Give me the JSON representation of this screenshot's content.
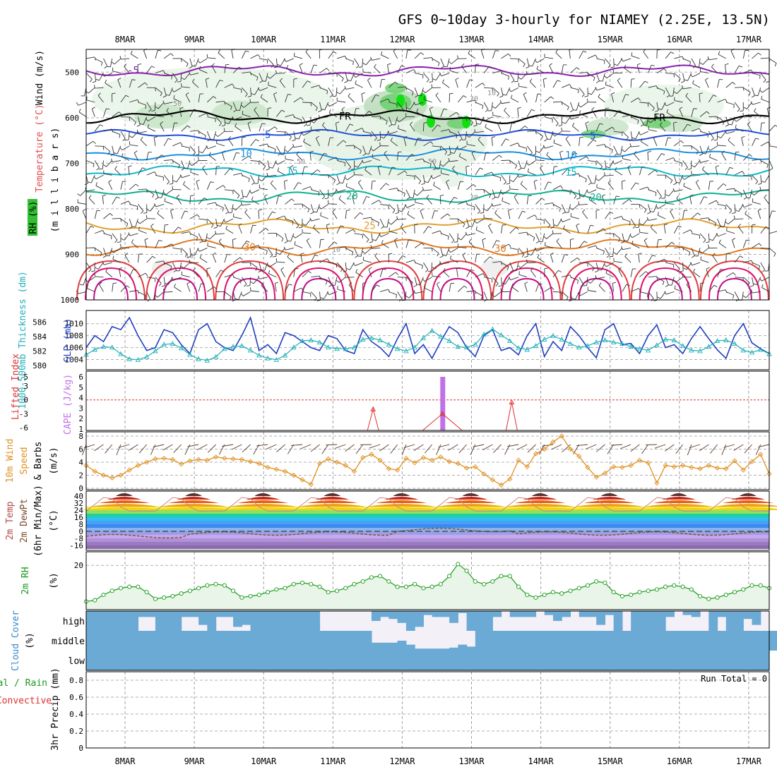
{
  "title": "GFS 0~10day 3-hourly for NIAMEY (2.25E, 13.5N)",
  "dates": [
    "8MAR",
    "9MAR",
    "10MAR",
    "11MAR",
    "12MAR",
    "13MAR",
    "14MAR",
    "15MAR",
    "16MAR",
    "17MAR"
  ],
  "run_total": "Run Total = 0",
  "colors": {
    "thickness": "#20b0b8",
    "slp": "#1f3fbf",
    "cape": "#c070e8",
    "lifted": "#e03030",
    "wind10": "#e09020",
    "rh2m": "#1a9a1a",
    "cloud": "#6aaad4",
    "temp_line": "#d08080",
    "dewpt_line": "#8a5a3a"
  },
  "chart_data": [
    {
      "type": "heatmap",
      "panel": "upper-air",
      "ylabels": [
        "Wind (m/s)",
        "Temperature (°C)",
        "RH (%)",
        "(m i l l i b a r s)"
      ],
      "yticks": [
        500,
        600,
        700,
        800,
        900,
        1000
      ],
      "ylim": [
        450,
        1000
      ],
      "temperature_contours": [
        {
          "label": "-5",
          "p": 497,
          "color": "#8a20b0"
        },
        {
          "label": "FR",
          "p": 598,
          "color": "#000000"
        },
        {
          "label": "5",
          "p": 638,
          "color": "#1f4fd8"
        },
        {
          "label": "10",
          "p": 680,
          "color": "#1a90e0"
        },
        {
          "label": "15",
          "p": 718,
          "color": "#10b8c8"
        },
        {
          "label": "20",
          "p": 773,
          "color": "#10b090"
        },
        {
          "label": "25",
          "p": 838,
          "color": "#e0a030"
        },
        {
          "label": "30",
          "p": 885,
          "color": "#e07820"
        }
      ],
      "rh_labels": [
        "10",
        "30",
        "50"
      ]
    },
    {
      "type": "line",
      "panel": "thickness-slp",
      "ylabel_left": "1000-500mb Thickness (dm)",
      "ylabel_right": "SLP (mb)",
      "yticks_left": [
        580,
        582,
        584,
        586
      ],
      "yticks_right": [
        1004,
        1006,
        1008,
        1010
      ],
      "series": [
        {
          "name": "SLP (mb)",
          "axis": "right",
          "values": [
            1006,
            1008,
            1007,
            1009.5,
            1009,
            1011,
            1008,
            1005.5,
            1006,
            1009,
            1008.5,
            1006.5,
            1005,
            1009,
            1010,
            1007,
            1006,
            1005.5,
            1008,
            1011,
            1005.5,
            1006.5,
            1005,
            1008.5,
            1008,
            1007,
            1006,
            1005.5,
            1008,
            1007.5,
            1005.5,
            1005,
            1009,
            1007,
            1006,
            1004.5,
            1007.5,
            1010,
            1005,
            1006.5,
            1004.2,
            1007,
            1009.5,
            1008.5,
            1006,
            1004.5,
            1008,
            1009,
            1005.5,
            1006,
            1004.8,
            1008,
            1010,
            1004.5,
            1007,
            1005.5,
            1009.5,
            1008,
            1006,
            1004.3,
            1009,
            1010,
            1006.5,
            1006.7,
            1005,
            1008,
            1009.8,
            1006,
            1006.5,
            1005,
            1007.5,
            1009.5,
            1007.5,
            1005.6,
            1004.2,
            1008,
            1010,
            1006.8,
            1005.8,
            1005
          ]
        },
        {
          "name": "1000-500mb Thickness (dm)",
          "axis": "left",
          "values": [
            581.5,
            582.2,
            582.6,
            582.5,
            581.6,
            580.9,
            580.8,
            581.2,
            582,
            582.9,
            583,
            582.4,
            581.5,
            580.9,
            580.7,
            581.2,
            582.3,
            582.6,
            582.7,
            582.1,
            581.4,
            581,
            580.8,
            581.4,
            582.5,
            583.4,
            583.5,
            583.2,
            582.5,
            582.3,
            582.3,
            582.5,
            583.6,
            583.8,
            583.5,
            582.9,
            582.3,
            582,
            582.5,
            583.8,
            584.8,
            584,
            583.4,
            582.6,
            582.5,
            582.9,
            584.3,
            585,
            584.2,
            583.4,
            582.4,
            582.2,
            582.7,
            583.6,
            584.1,
            583.6,
            583,
            582.5,
            582.7,
            583.2,
            583.5,
            583.2,
            583,
            582.6,
            582.3,
            582.1,
            582.8,
            583.6,
            583.5,
            582.7,
            582.1,
            582,
            582.6,
            583.4,
            583.5,
            583,
            582.1,
            581.8,
            582.2,
            581.6
          ]
        }
      ]
    },
    {
      "type": "bar",
      "panel": "cape-lifted",
      "ylabel_left": "Lifted Index",
      "ylabel_right": "CAPE (J/kg)",
      "yticks": [
        "5",
        "3",
        "0",
        "-3",
        "-6"
      ],
      "cape_bars": [
        {
          "day_offset": 4.58,
          "value": 6
        }
      ],
      "lifted_index_peaks": [
        {
          "day_offset": 3.58,
          "value": -2
        },
        {
          "day_offset": 4.58,
          "value": -3
        },
        {
          "day_offset": 5.58,
          "value": -0.5
        }
      ]
    },
    {
      "type": "line",
      "panel": "wind10m",
      "ylabels": [
        "10m Wind",
        "Speed",
        "(m/s)",
        "& Barbs"
      ],
      "yticks": [
        0,
        2,
        4,
        6,
        8
      ],
      "ylim": [
        0,
        8
      ],
      "series": [
        {
          "name": "Speed",
          "values": [
            3.5,
            2.6,
            2,
            1.6,
            2,
            2.8,
            3.5,
            4,
            4.5,
            4.6,
            4.4,
            3.7,
            4.2,
            4.4,
            4.3,
            4.8,
            4.6,
            4.5,
            4.4,
            4.1,
            3.8,
            3.2,
            2.9,
            2.6,
            2,
            1.3,
            0.6,
            3.8,
            4.5,
            4,
            3.5,
            2.6,
            4.7,
            5.2,
            4.3,
            3,
            2.8,
            4.6,
            3.9,
            4.7,
            4.3,
            4.8,
            4.1,
            3.8,
            3.1,
            3.3,
            2.2,
            1.3,
            0.5,
            1.4,
            4.3,
            3.3,
            5.3,
            6,
            7.1,
            8,
            6,
            4.9,
            3.2,
            1.7,
            2.3,
            3.3,
            3.2,
            3.5,
            4.3,
            3.9,
            0.8,
            3.5,
            3.3,
            3.5,
            3.2,
            3,
            3.5,
            3.1,
            3,
            4.2,
            2.8,
            4.1,
            5.2,
            2.2
          ]
        }
      ]
    },
    {
      "type": "area",
      "panel": "temp2m",
      "ylabels": [
        "2m Temp",
        "2m DewPt",
        "(6hr Min/Max)",
        "(°C)"
      ],
      "yticks": [
        -16,
        -8,
        0,
        8,
        16,
        24,
        32,
        40
      ],
      "ylim": [
        -20,
        44
      ],
      "temperature_daily": [
        {
          "min": 23,
          "max": 39
        }
      ],
      "dewpoint_range": [
        -8,
        3
      ]
    },
    {
      "type": "line",
      "panel": "rh2m",
      "ylabels": [
        "2m RH",
        "(%)"
      ],
      "yticks": [
        20
      ],
      "ylim": [
        4,
        24
      ],
      "series": [
        {
          "name": "2m RH",
          "values": [
            6.5,
            7,
            9,
            10.5,
            11.5,
            12,
            12,
            10,
            7.5,
            8,
            8.5,
            9.5,
            10.5,
            11.5,
            12.5,
            13,
            12.5,
            10.5,
            8,
            8.5,
            9,
            10,
            11,
            11.5,
            13,
            13.5,
            13,
            12,
            10,
            10.5,
            11.5,
            13,
            14,
            15.5,
            16,
            14,
            12,
            12,
            13,
            11.5,
            12,
            13,
            16,
            20.5,
            18,
            14,
            13,
            14,
            16,
            16,
            12,
            9,
            8,
            9,
            10,
            9.5,
            10.5,
            11.5,
            12.5,
            14,
            13.5,
            10,
            8.5,
            9,
            10,
            10.5,
            11,
            12,
            12.5,
            12,
            11,
            8.5,
            7.5,
            8,
            9,
            10,
            11,
            12.5,
            12.5,
            11.5
          ]
        }
      ]
    },
    {
      "type": "bar",
      "panel": "cloud-cover",
      "ylabels": [
        "Cloud Cover",
        "(%)"
      ],
      "levels": [
        "high",
        "middle",
        "low"
      ],
      "high_cover": [
        100,
        100,
        100,
        100,
        100,
        100,
        30,
        30,
        100,
        100,
        100,
        30,
        30,
        70,
        100,
        30,
        30,
        80,
        70,
        100,
        100,
        100,
        100,
        100,
        100,
        100,
        100,
        0,
        0,
        0,
        0,
        0,
        0,
        50,
        30,
        40,
        60,
        100,
        80,
        20,
        30,
        30,
        60,
        10,
        100,
        100,
        100,
        30,
        0,
        30,
        30,
        30,
        0,
        20,
        50,
        30,
        0,
        30,
        30,
        70,
        20,
        100,
        0,
        100,
        100,
        100,
        100,
        30,
        0,
        20,
        30,
        0,
        100,
        30,
        100,
        100,
        40,
        70,
        0,
        0
      ],
      "middle_cover": [
        100,
        100,
        100,
        100,
        100,
        100,
        100,
        100,
        100,
        100,
        100,
        100,
        100,
        100,
        100,
        100,
        100,
        100,
        100,
        100,
        100,
        100,
        100,
        100,
        100,
        100,
        100,
        100,
        100,
        100,
        100,
        100,
        100,
        40,
        40,
        40,
        50,
        30,
        10,
        10,
        10,
        10,
        15,
        30,
        20,
        100,
        100,
        100,
        100,
        100,
        100,
        100,
        100,
        100,
        100,
        100,
        100,
        100,
        100,
        100,
        100,
        100,
        100,
        100,
        100,
        100,
        100,
        100,
        100,
        100,
        100,
        100,
        100,
        100,
        100,
        100,
        100,
        100,
        100,
        100
      ],
      "low_cover": 100
    },
    {
      "type": "bar",
      "panel": "precip",
      "ylabels": [
        "Total / Rain",
        "Convective",
        "3hr Precip (mm)"
      ],
      "yticks": [
        "0",
        "0.2",
        "0.4",
        "0.6",
        "0.8"
      ],
      "values": []
    }
  ]
}
